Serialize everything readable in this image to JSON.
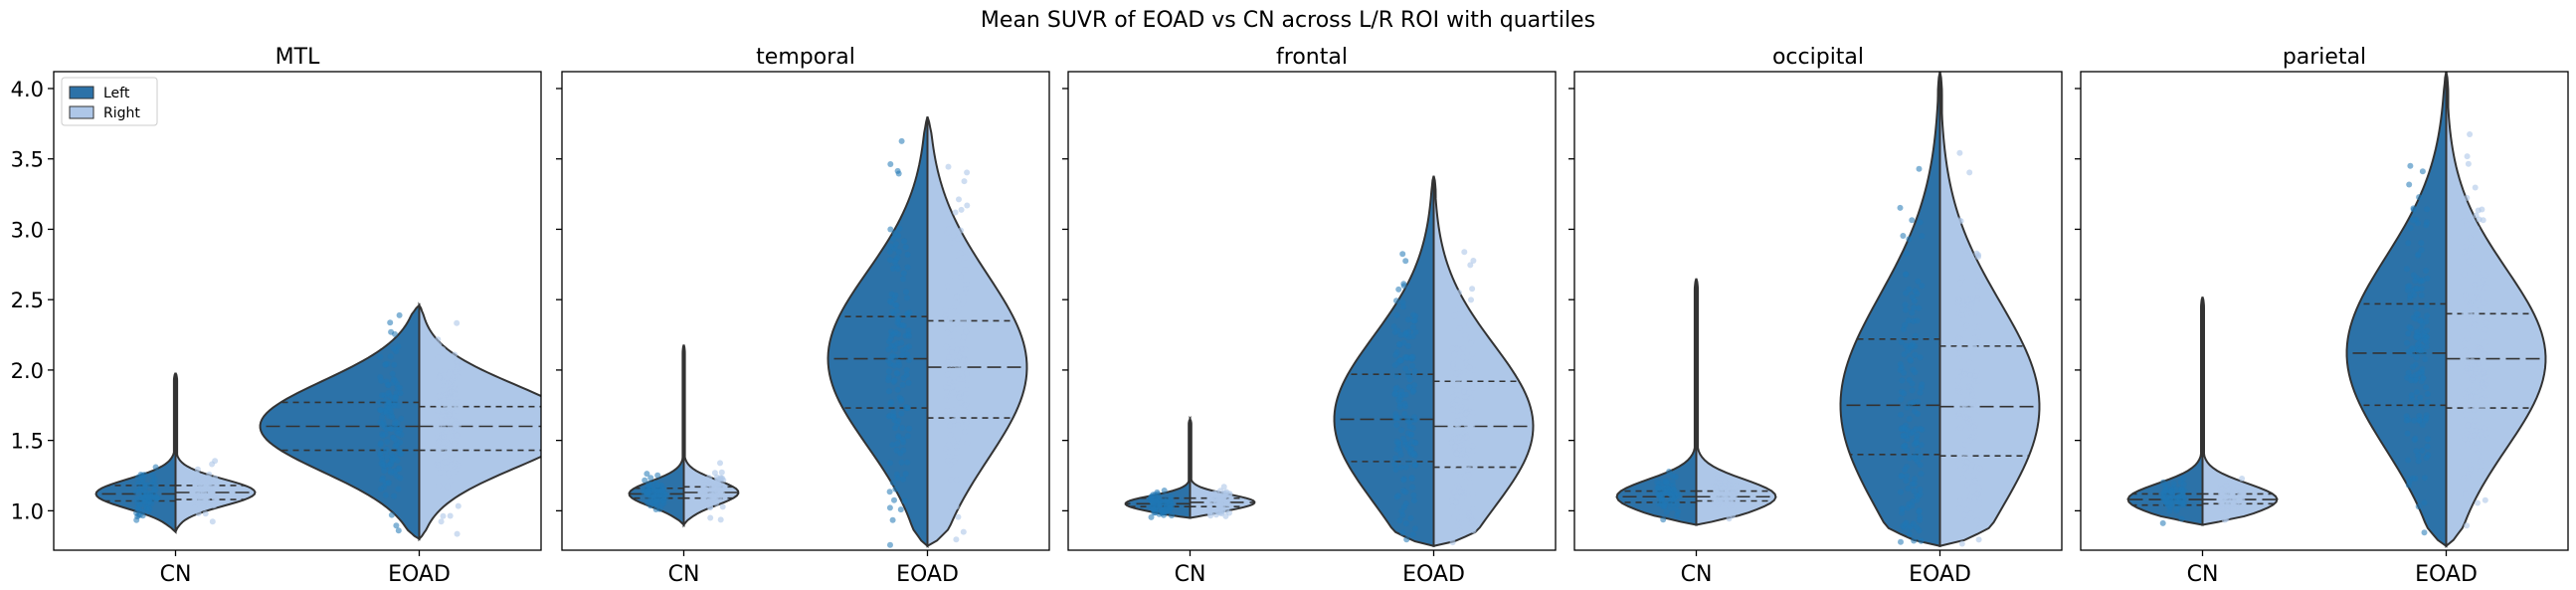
{
  "figure": {
    "suptitle": "Mean SUVR of EOAD vs CN across L/R ROI with quartiles"
  },
  "legend": {
    "location": "upper left of first panel",
    "entries": [
      {
        "label": "Left",
        "color": "#2c72a8"
      },
      {
        "label": "Right",
        "color": "#aec7e8"
      }
    ]
  },
  "colors": {
    "left_fill": "#2c72a8",
    "right_fill": "#aec7e8",
    "left_points": "#1f77b4",
    "right_points": "#aec7e8",
    "outline": "#333333"
  },
  "chart_data": [
    {
      "type": "violin",
      "title": "MTL",
      "categories": [
        "CN",
        "EOAD"
      ],
      "ylim": [
        0.72,
        4.12
      ],
      "yticks": [
        "1.0",
        "1.5",
        "2.0",
        "2.5",
        "3.0",
        "3.5",
        "4.0"
      ],
      "series": [
        {
          "name": "Left",
          "groups": [
            {
              "category": "CN",
              "min": 0.85,
              "max": 1.98,
              "q1": 1.07,
              "median": 1.12,
              "q3": 1.18
            },
            {
              "category": "EOAD",
              "min": 0.8,
              "max": 2.46,
              "q1": 1.43,
              "median": 1.6,
              "q3": 1.77
            }
          ]
        },
        {
          "name": "Right",
          "groups": [
            {
              "category": "CN",
              "min": 0.85,
              "max": 1.98,
              "q1": 1.08,
              "median": 1.13,
              "q3": 1.18
            },
            {
              "category": "EOAD",
              "min": 0.8,
              "max": 2.46,
              "q1": 1.43,
              "median": 1.6,
              "q3": 1.74
            }
          ]
        }
      ]
    },
    {
      "type": "violin",
      "title": "temporal",
      "categories": [
        "CN",
        "EOAD"
      ],
      "ylim": [
        0.72,
        4.12
      ],
      "yticks": [
        "1.0",
        "1.5",
        "2.0",
        "2.5",
        "3.0",
        "3.5",
        "4.0"
      ],
      "series": [
        {
          "name": "Left",
          "groups": [
            {
              "category": "CN",
              "min": 0.9,
              "max": 2.18,
              "q1": 1.09,
              "median": 1.12,
              "q3": 1.16
            },
            {
              "category": "EOAD",
              "min": 0.75,
              "max": 3.8,
              "q1": 1.73,
              "median": 2.08,
              "q3": 2.38
            }
          ]
        },
        {
          "name": "Right",
          "groups": [
            {
              "category": "CN",
              "min": 0.9,
              "max": 2.18,
              "q1": 1.09,
              "median": 1.13,
              "q3": 1.17
            },
            {
              "category": "EOAD",
              "min": 0.75,
              "max": 3.8,
              "q1": 1.66,
              "median": 2.02,
              "q3": 2.35
            }
          ]
        }
      ]
    },
    {
      "type": "violin",
      "title": "frontal",
      "categories": [
        "CN",
        "EOAD"
      ],
      "ylim": [
        0.72,
        4.12
      ],
      "yticks": [
        "1.0",
        "1.5",
        "2.0",
        "2.5",
        "3.0",
        "3.5",
        "4.0"
      ],
      "series": [
        {
          "name": "Left",
          "groups": [
            {
              "category": "CN",
              "min": 0.95,
              "max": 1.65,
              "q1": 1.03,
              "median": 1.05,
              "q3": 1.09
            },
            {
              "category": "EOAD",
              "min": 0.75,
              "max": 3.38,
              "q1": 1.35,
              "median": 1.65,
              "q3": 1.97
            }
          ]
        },
        {
          "name": "Right",
          "groups": [
            {
              "category": "CN",
              "min": 0.95,
              "max": 1.65,
              "q1": 1.03,
              "median": 1.06,
              "q3": 1.09
            },
            {
              "category": "EOAD",
              "min": 0.75,
              "max": 3.38,
              "q1": 1.31,
              "median": 1.6,
              "q3": 1.92
            }
          ]
        }
      ]
    },
    {
      "type": "violin",
      "title": "occipital",
      "categories": [
        "CN",
        "EOAD"
      ],
      "ylim": [
        0.72,
        4.12
      ],
      "yticks": [
        "1.0",
        "1.5",
        "2.0",
        "2.5",
        "3.0",
        "3.5",
        "4.0"
      ],
      "series": [
        {
          "name": "Left",
          "groups": [
            {
              "category": "CN",
              "min": 0.9,
              "max": 2.65,
              "q1": 1.06,
              "median": 1.1,
              "q3": 1.14
            },
            {
              "category": "EOAD",
              "min": 0.75,
              "max": 4.12,
              "q1": 1.4,
              "median": 1.75,
              "q3": 2.22
            }
          ]
        },
        {
          "name": "Right",
          "groups": [
            {
              "category": "CN",
              "min": 0.9,
              "max": 2.65,
              "q1": 1.07,
              "median": 1.1,
              "q3": 1.14
            },
            {
              "category": "EOAD",
              "min": 0.75,
              "max": 4.12,
              "q1": 1.39,
              "median": 1.74,
              "q3": 2.17
            }
          ]
        }
      ]
    },
    {
      "type": "violin",
      "title": "parietal",
      "categories": [
        "CN",
        "EOAD"
      ],
      "ylim": [
        0.72,
        4.12
      ],
      "yticks": [
        "1.0",
        "1.5",
        "2.0",
        "2.5",
        "3.0",
        "3.5",
        "4.0"
      ],
      "series": [
        {
          "name": "Left",
          "groups": [
            {
              "category": "CN",
              "min": 0.9,
              "max": 2.52,
              "q1": 1.04,
              "median": 1.08,
              "q3": 1.12
            },
            {
              "category": "EOAD",
              "min": 0.75,
              "max": 4.12,
              "q1": 1.75,
              "median": 2.12,
              "q3": 2.47
            }
          ]
        },
        {
          "name": "Right",
          "groups": [
            {
              "category": "CN",
              "min": 0.9,
              "max": 2.52,
              "q1": 1.05,
              "median": 1.08,
              "q3": 1.12
            },
            {
              "category": "EOAD",
              "min": 0.75,
              "max": 4.12,
              "q1": 1.73,
              "median": 2.08,
              "q3": 2.4
            }
          ]
        }
      ]
    }
  ]
}
